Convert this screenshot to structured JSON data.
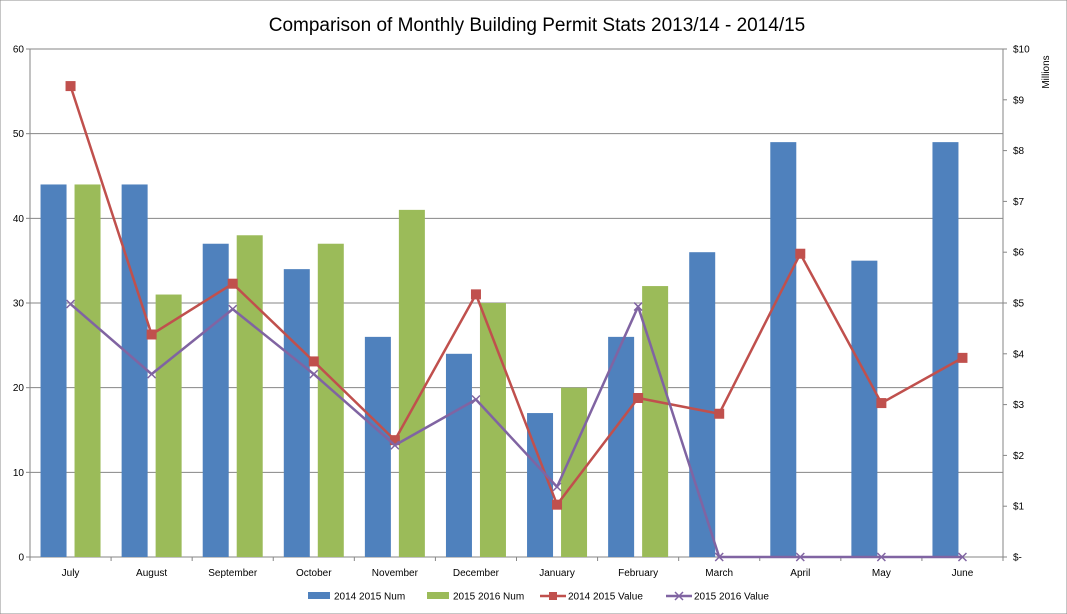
{
  "chart_data": {
    "type": "bar",
    "title": "Comparison of Monthly Building Permit Stats 2013/14 - 2014/15",
    "categories": [
      "July",
      "August",
      "September",
      "October",
      "November",
      "December",
      "January",
      "February",
      "March",
      "April",
      "May",
      "June"
    ],
    "y_left": {
      "min": 0,
      "max": 60,
      "ticks": [
        0,
        10,
        20,
        30,
        40,
        50,
        60
      ]
    },
    "y_right": {
      "title": "Millions",
      "min": 0,
      "max": 10,
      "tick_labels": [
        "$-",
        "$1",
        "$2",
        "$3",
        "$4",
        "$5",
        "$6",
        "$7",
        "$8",
        "$9",
        "$10"
      ]
    },
    "grid": true,
    "legend_position": "bottom",
    "series": [
      {
        "name": "2014 2015 Num",
        "kind": "bar",
        "axis": "left",
        "color": "#4F81BD",
        "values": [
          44,
          44,
          37,
          34,
          26,
          24,
          17,
          26,
          36,
          49,
          35,
          49
        ]
      },
      {
        "name": "2015 2016 Num",
        "kind": "bar",
        "axis": "left",
        "color": "#9BBB59",
        "values": [
          44,
          31,
          38,
          37,
          41,
          30,
          20,
          32,
          null,
          null,
          null,
          null
        ]
      },
      {
        "name": "2014 2015 Value",
        "kind": "line",
        "marker": "square",
        "axis": "right",
        "color": "#C0504D",
        "values": [
          9.27,
          4.38,
          5.38,
          3.85,
          2.3,
          5.17,
          1.03,
          3.13,
          2.82,
          5.97,
          3.03,
          3.92
        ]
      },
      {
        "name": "2015 2016 Value",
        "kind": "line",
        "marker": "x",
        "axis": "right",
        "color": "#8064A2",
        "values": [
          4.98,
          3.6,
          4.88,
          3.6,
          2.2,
          3.1,
          1.38,
          4.93,
          0,
          0,
          0,
          0
        ]
      }
    ]
  }
}
